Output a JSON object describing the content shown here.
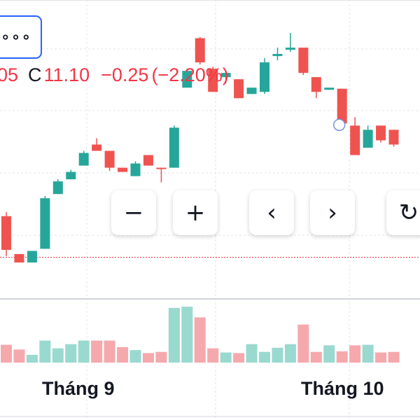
{
  "legend": {
    "open_fragment": "05",
    "close_key": "C",
    "close_value": "11.10",
    "change": "−0.25",
    "change_pct": "(−2.20%)"
  },
  "menu_button": {
    "label": "∘∘∘",
    "icon": "more-dots-icon"
  },
  "controls": {
    "zoom_out": {
      "label": "−",
      "icon": "minus-icon"
    },
    "zoom_in": {
      "label": "+",
      "icon": "plus-icon"
    },
    "scroll_left": {
      "label": "‹",
      "icon": "chevron-left-icon"
    },
    "scroll_right": {
      "label": "›",
      "icon": "chevron-right-icon"
    },
    "reset": {
      "label": "↻",
      "icon": "reset-icon"
    }
  },
  "colors": {
    "up": "#26a69a",
    "down": "#ef5350",
    "volume_up": "#9ad9cf",
    "volume_down": "#f5a9ad",
    "last_price_line": "#f23645",
    "grid": "#e0e3eb"
  },
  "chart_data": {
    "type": "candlestick",
    "x_tick_labels": [
      "Tháng 9",
      "Tháng 10"
    ],
    "x_tick_at_candle": [
      3,
      26
    ],
    "last_price": 10.85,
    "grid": true,
    "candles": [
      {
        "o": 11.24,
        "h": 11.28,
        "l": 10.86,
        "c": 10.92
      },
      {
        "o": 10.88,
        "h": 10.88,
        "l": 10.8,
        "c": 10.8
      },
      {
        "o": 10.8,
        "h": 10.91,
        "l": 10.8,
        "c": 10.91
      },
      {
        "o": 10.93,
        "h": 11.43,
        "l": 10.93,
        "c": 11.41
      },
      {
        "o": 11.45,
        "h": 11.59,
        "l": 11.45,
        "c": 11.57
      },
      {
        "o": 11.59,
        "h": 11.68,
        "l": 11.59,
        "c": 11.66
      },
      {
        "o": 11.72,
        "h": 11.86,
        "l": 11.72,
        "c": 11.84
      },
      {
        "o": 11.92,
        "h": 11.98,
        "l": 11.86,
        "c": 11.86
      },
      {
        "o": 11.86,
        "h": 11.86,
        "l": 11.67,
        "c": 11.7
      },
      {
        "o": 11.7,
        "h": 11.7,
        "l": 11.66,
        "c": 11.66
      },
      {
        "o": 11.62,
        "h": 11.76,
        "l": 11.62,
        "c": 11.74
      },
      {
        "o": 11.82,
        "h": 11.82,
        "l": 11.72,
        "c": 11.72
      },
      {
        "o": 11.7,
        "h": 11.7,
        "l": 11.56,
        "c": 11.69
      },
      {
        "o": 11.7,
        "h": 12.1,
        "l": 11.7,
        "c": 12.08
      },
      {
        "o": 12.46,
        "h": 12.64,
        "l": 12.46,
        "c": 12.62
      },
      {
        "o": 12.93,
        "h": 12.94,
        "l": 12.68,
        "c": 12.7
      },
      {
        "o": 12.64,
        "h": 12.66,
        "l": 12.42,
        "c": 12.42
      },
      {
        "o": 12.56,
        "h": 12.62,
        "l": 12.5,
        "c": 12.6
      },
      {
        "o": 12.54,
        "h": 12.54,
        "l": 12.36,
        "c": 12.36
      },
      {
        "o": 12.4,
        "h": 12.46,
        "l": 12.4,
        "c": 12.46
      },
      {
        "o": 12.42,
        "h": 12.74,
        "l": 12.4,
        "c": 12.7
      },
      {
        "o": 12.76,
        "h": 12.84,
        "l": 12.72,
        "c": 12.78
      },
      {
        "o": 12.82,
        "h": 12.98,
        "l": 12.8,
        "c": 12.84
      },
      {
        "o": 12.84,
        "h": 12.84,
        "l": 12.58,
        "c": 12.6
      },
      {
        "o": 12.56,
        "h": 12.56,
        "l": 12.36,
        "c": 12.42
      },
      {
        "o": 12.44,
        "h": 12.46,
        "l": 12.44,
        "c": 12.46
      },
      {
        "o": 12.45,
        "h": 12.45,
        "l": 12.1,
        "c": 12.12
      },
      {
        "o": 12.1,
        "h": 12.18,
        "l": 11.82,
        "c": 11.82
      },
      {
        "o": 11.89,
        "h": 12.1,
        "l": 11.89,
        "c": 12.06
      },
      {
        "o": 12.1,
        "h": 12.1,
        "l": 11.94,
        "c": 11.96
      },
      {
        "o": 12.06,
        "h": 12.06,
        "l": 11.9,
        "c": 11.92
      }
    ],
    "volume": [
      30,
      22,
      13,
      37,
      24,
      31,
      37,
      37,
      37,
      26,
      21,
      16,
      18,
      92,
      94,
      76,
      24,
      17,
      16,
      31,
      18,
      25,
      31,
      64,
      18,
      29,
      19,
      29,
      30,
      17,
      18
    ]
  }
}
